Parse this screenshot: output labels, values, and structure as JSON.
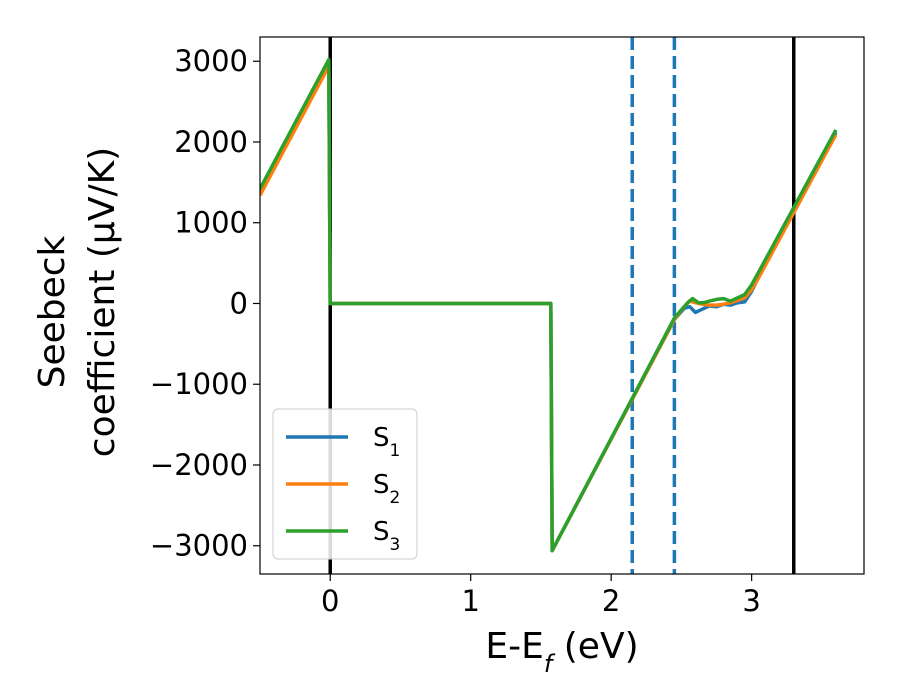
{
  "chart_data": {
    "type": "line",
    "xlabel": "E-E",
    "xlabel_sub": "f",
    "xlabel_unit": " (eV)",
    "ylabel_line1": "Seebeck",
    "ylabel_line2": "coefficient  (μV/K)",
    "xlim": [
      -0.5,
      3.8
    ],
    "ylim": [
      -3350,
      3300
    ],
    "xticks": [
      0,
      1,
      2,
      3
    ],
    "xtick_labels": [
      "0",
      "1",
      "2",
      "3"
    ],
    "yticks": [
      3000,
      2000,
      1000,
      0,
      -1000,
      -2000,
      -3000
    ],
    "ytick_labels": [
      "3000",
      "2000",
      "1000",
      "0",
      "−1000",
      "−2000",
      "−3000"
    ],
    "grid": false,
    "legend_position": "lower-left",
    "series": [
      {
        "name": "S",
        "sub": "1",
        "color": "#1f77b4",
        "x": [
          -0.5,
          -0.01,
          0.0,
          1.57,
          1.58,
          2.45,
          2.52,
          2.56,
          2.6,
          2.65,
          2.7,
          2.75,
          2.8,
          2.85,
          2.9,
          2.95,
          3.0,
          3.05,
          3.6
        ],
        "y": [
          1380,
          2990,
          0,
          0,
          -3060,
          -200,
          -60,
          -40,
          -110,
          -70,
          -30,
          -40,
          -10,
          -20,
          10,
          20,
          150,
          330,
          2120
        ]
      },
      {
        "name": "S",
        "sub": "2",
        "color": "#ff7f0e",
        "x": [
          -0.5,
          -0.01,
          0.0,
          1.57,
          1.58,
          2.45,
          2.52,
          2.56,
          2.6,
          2.65,
          2.7,
          2.75,
          2.8,
          2.85,
          2.9,
          2.95,
          3.0,
          3.05,
          3.6
        ],
        "y": [
          1340,
          2940,
          0,
          0,
          -3060,
          -200,
          -40,
          30,
          10,
          -10,
          -20,
          -20,
          -10,
          10,
          40,
          70,
          170,
          320,
          2090
        ]
      },
      {
        "name": "S",
        "sub": "3",
        "color": "#2ca02c",
        "x": [
          -0.5,
          -0.01,
          0.0,
          1.57,
          1.58,
          2.45,
          2.5,
          2.55,
          2.58,
          2.62,
          2.66,
          2.7,
          2.75,
          2.8,
          2.85,
          2.9,
          2.95,
          3.0,
          3.05,
          3.6
        ],
        "y": [
          1420,
          3020,
          0,
          0,
          -3060,
          -180,
          -80,
          20,
          60,
          10,
          10,
          30,
          50,
          60,
          30,
          70,
          110,
          230,
          390,
          2150
        ]
      }
    ],
    "vlines": [
      {
        "x": 0.0,
        "style": "solid",
        "color": "#000000"
      },
      {
        "x": 3.3,
        "style": "solid",
        "color": "#000000"
      },
      {
        "x": 2.15,
        "style": "dashed",
        "color": "#1f77b4"
      },
      {
        "x": 2.45,
        "style": "dashed",
        "color": "#1f77b4"
      }
    ]
  }
}
